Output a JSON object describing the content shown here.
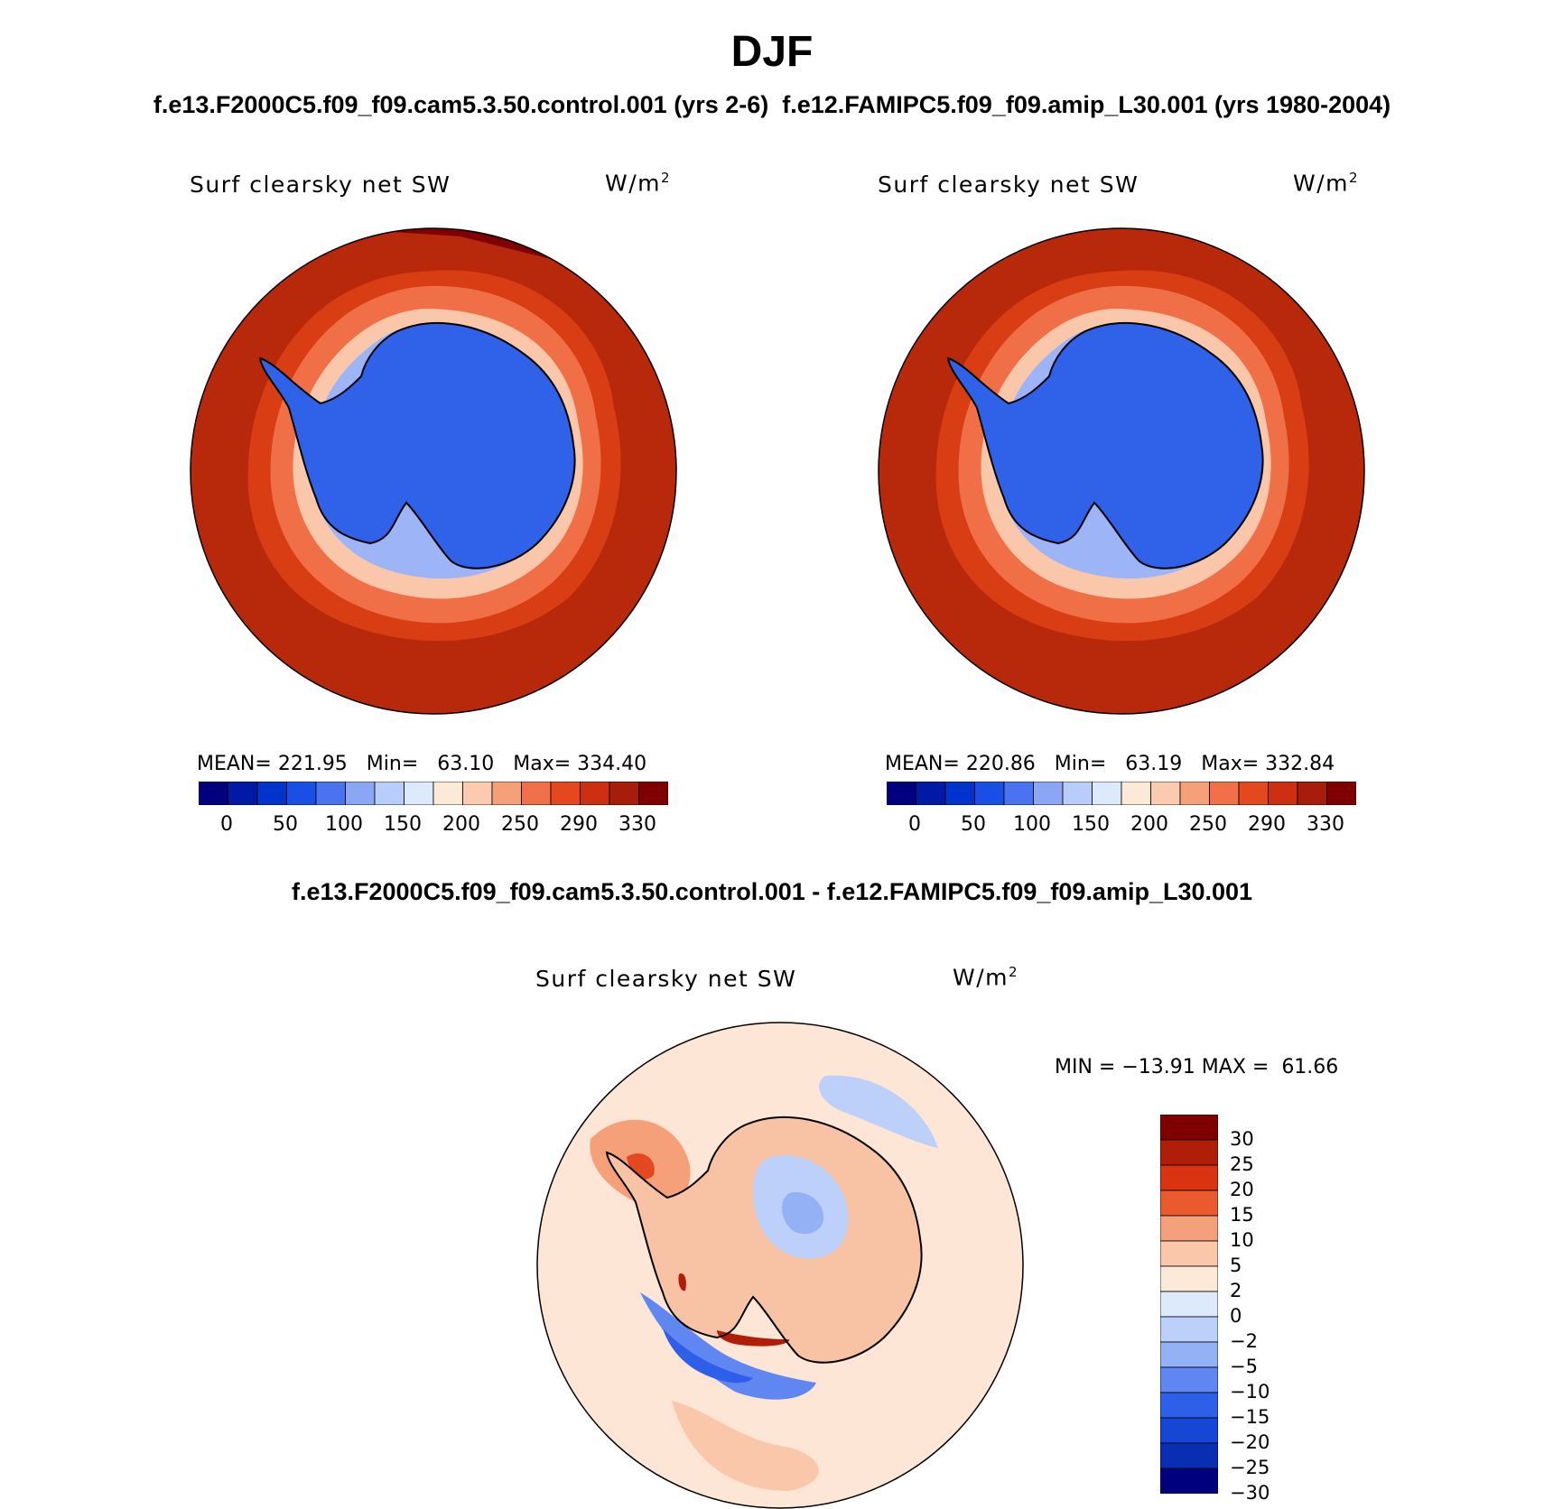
{
  "header": {
    "title": "DJF",
    "subtitle": "f.e13.F2000C5.f09_f09.cam5.3.50.control.001 (yrs 2-6)  f.e12.FAMIPC5.f09_f09.amip_L30.001 (yrs 1980-2004)"
  },
  "panels": [
    {
      "label": "Surf clearsky net SW",
      "units_base": "W/m",
      "units_exp": "2",
      "stats": {
        "mean_label": "MEAN=",
        "mean_value": "221.95",
        "min_label": "Min=",
        "min_value": "63.10",
        "max_label": "Max=",
        "max_value": "334.40"
      }
    },
    {
      "label": "Surf clearsky net SW",
      "units_base": "W/m",
      "units_exp": "2",
      "stats": {
        "mean_label": "MEAN=",
        "mean_value": "220.86",
        "min_label": "Min=",
        "min_value": "63.19",
        "max_label": "Max=",
        "max_value": "332.84"
      }
    }
  ],
  "difference": {
    "title": "f.e13.F2000C5.f09_f09.cam5.3.50.control.001 - f.e12.FAMIPC5.f09_f09.amip_L30.001",
    "label": "Surf clearsky net SW",
    "units_base": "W/m",
    "units_exp": "2",
    "min_label": "MIN =",
    "min_value": "−13.91",
    "max_label": "MAX =",
    "max_value": "61.66"
  },
  "colorbar_horizontal": {
    "ticks": [
      "0",
      "50",
      "100",
      "150",
      "200",
      "250",
      "290",
      "330"
    ],
    "colors": [
      "#00007f",
      "#001aa6",
      "#0033cc",
      "#1a4fe6",
      "#4a73f0",
      "#8aa6f5",
      "#b9cdfa",
      "#dde9fc",
      "#fde9d8",
      "#fbcbb0",
      "#f6a07a",
      "#f0704a",
      "#e3481f",
      "#cc3010",
      "#a81c0a",
      "#7f0000"
    ]
  },
  "colorbar_vertical": {
    "ticks": [
      "30",
      "25",
      "20",
      "15",
      "10",
      "5",
      "2",
      "0",
      "−2",
      "−5",
      "−10",
      "−15",
      "−20",
      "−25",
      "−30"
    ],
    "colors": [
      "#7f0000",
      "#b01e0a",
      "#d93311",
      "#ea5a2e",
      "#f5a07c",
      "#fbc7ab",
      "#fde9d8",
      "#ddeafc",
      "#bdd0fa",
      "#94b1f6",
      "#5f86f1",
      "#2e5fe8",
      "#1546d6",
      "#0a2eb3",
      "#00007f"
    ]
  },
  "map": {
    "ocean_outer": "#b8280a",
    "ocean_ring_far": "#d83d14",
    "ocean_ring_mid": "#f06f47",
    "ice_edge": "#fbc7ab",
    "ice_inner": "#9db5f6",
    "continent": "#2f62e8",
    "diff_background": "#fde6d6",
    "diff_continent": "#f7c3a4"
  }
}
